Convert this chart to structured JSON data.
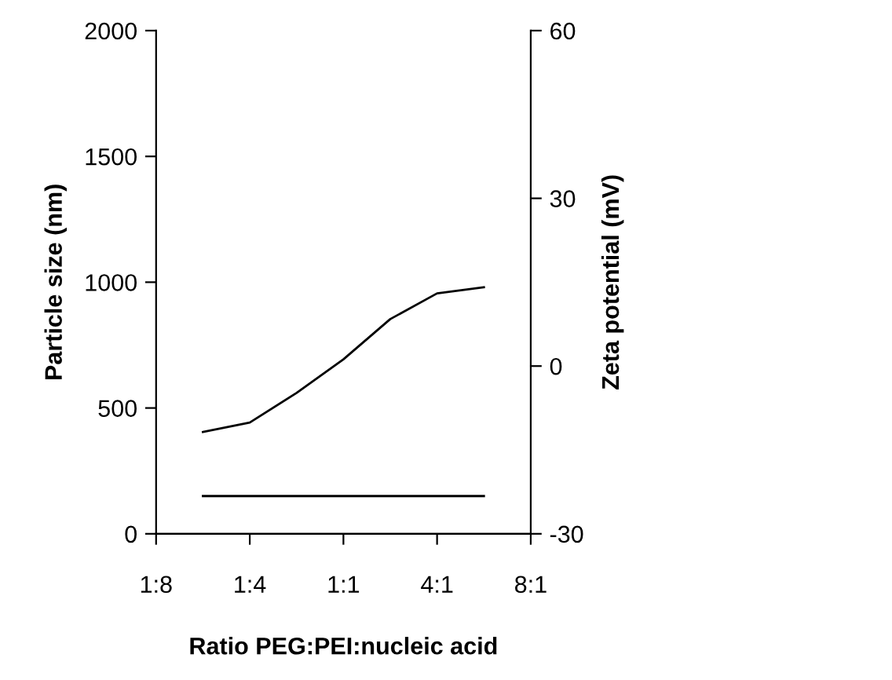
{
  "chart_data": {
    "type": "line",
    "xlabel": "Ratio PEG:PEI:nucleic acid",
    "ylabel": "Particle size (nm)",
    "y2label": "Zeta potential (mV)",
    "categories": [
      "1:8",
      null,
      "1:4",
      null,
      "1:1",
      null,
      "4:1",
      null,
      "8:1"
    ],
    "ylim": [
      0,
      2000
    ],
    "yticks": [
      0,
      500,
      1000,
      1500,
      2000
    ],
    "y2lim": [
      -30,
      60
    ],
    "y2ticks": [
      -30,
      0,
      30,
      60
    ],
    "grid": false,
    "legend": false,
    "marker": "none",
    "line_style": "solid",
    "series": [
      {
        "color": "#000000",
        "values": [
          null,
          150,
          150,
          150,
          150,
          150,
          150,
          150,
          null
        ]
      },
      {
        "color": "#000000",
        "axis": "y2",
        "values": [
          null,
          -11.8,
          -10.1,
          -4.8,
          1.2,
          8.4,
          13,
          14.1,
          null
        ]
      }
    ]
  }
}
